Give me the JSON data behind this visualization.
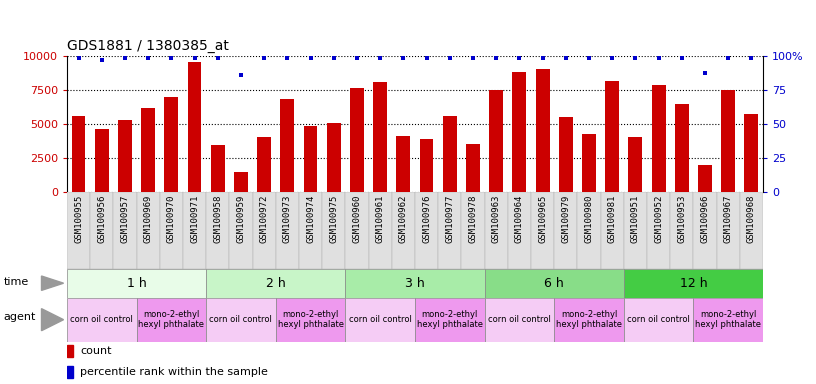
{
  "title": "GDS1881 / 1380385_at",
  "samples": [
    "GSM100955",
    "GSM100956",
    "GSM100957",
    "GSM100969",
    "GSM100970",
    "GSM100971",
    "GSM100958",
    "GSM100959",
    "GSM100972",
    "GSM100973",
    "GSM100974",
    "GSM100975",
    "GSM100960",
    "GSM100961",
    "GSM100962",
    "GSM100976",
    "GSM100977",
    "GSM100978",
    "GSM100963",
    "GSM100964",
    "GSM100965",
    "GSM100979",
    "GSM100980",
    "GSM100981",
    "GSM100951",
    "GSM100952",
    "GSM100953",
    "GSM100966",
    "GSM100967",
    "GSM100968"
  ],
  "counts": [
    5600,
    4650,
    5250,
    6150,
    7000,
    9500,
    3450,
    1450,
    4000,
    6850,
    4850,
    5050,
    7600,
    8050,
    4100,
    3900,
    5600,
    3550,
    7450,
    8800,
    9000,
    5500,
    4250,
    8150,
    4050,
    7850,
    6450,
    2000,
    7500,
    5700
  ],
  "percentile_ranks": [
    98,
    97,
    98,
    98,
    98,
    98,
    98,
    86,
    98,
    98,
    98,
    98,
    98,
    98,
    98,
    98,
    98,
    98,
    98,
    98,
    98,
    98,
    98,
    98,
    98,
    98,
    98,
    87,
    98,
    98
  ],
  "time_groups": [
    {
      "label": "1 h",
      "start": 0,
      "end": 6,
      "color": "#e8fce8"
    },
    {
      "label": "2 h",
      "start": 6,
      "end": 12,
      "color": "#c8f5c8"
    },
    {
      "label": "3 h",
      "start": 12,
      "end": 18,
      "color": "#a8eca8"
    },
    {
      "label": "6 h",
      "start": 18,
      "end": 24,
      "color": "#88dd88"
    },
    {
      "label": "12 h",
      "start": 24,
      "end": 30,
      "color": "#44cc44"
    }
  ],
  "agent_groups": [
    {
      "label": "corn oil control",
      "start": 0,
      "end": 3,
      "color": "#f5ccf5"
    },
    {
      "label": "mono-2-ethyl\nhexyl phthalate",
      "start": 3,
      "end": 6,
      "color": "#ee99ee"
    },
    {
      "label": "corn oil control",
      "start": 6,
      "end": 9,
      "color": "#f5ccf5"
    },
    {
      "label": "mono-2-ethyl\nhexyl phthalate",
      "start": 9,
      "end": 12,
      "color": "#ee99ee"
    },
    {
      "label": "corn oil control",
      "start": 12,
      "end": 15,
      "color": "#f5ccf5"
    },
    {
      "label": "mono-2-ethyl\nhexyl phthalate",
      "start": 15,
      "end": 18,
      "color": "#ee99ee"
    },
    {
      "label": "corn oil control",
      "start": 18,
      "end": 21,
      "color": "#f5ccf5"
    },
    {
      "label": "mono-2-ethyl\nhexyl phthalate",
      "start": 21,
      "end": 24,
      "color": "#ee99ee"
    },
    {
      "label": "corn oil control",
      "start": 24,
      "end": 27,
      "color": "#f5ccf5"
    },
    {
      "label": "mono-2-ethyl\nhexyl phthalate",
      "start": 27,
      "end": 30,
      "color": "#ee99ee"
    }
  ],
  "bar_color": "#cc0000",
  "dot_color": "#0000cc",
  "ylim_left": [
    0,
    10000
  ],
  "yticks_left": [
    0,
    2500,
    5000,
    7500,
    10000
  ],
  "ytick_labels_left": [
    "0",
    "2500",
    "5000",
    "7500",
    "10000"
  ],
  "ylim_right": [
    0,
    100
  ],
  "yticks_right": [
    0,
    25,
    50,
    75,
    100
  ],
  "ytick_labels_right": [
    "0",
    "25",
    "50",
    "75",
    "100%"
  ],
  "left_axis_color": "#cc0000",
  "right_axis_color": "#0000cc",
  "time_label": "time",
  "agent_label": "agent",
  "legend_count_label": "count",
  "legend_percentile_label": "percentile rank within the sample",
  "title_fontsize": 10,
  "tick_fontsize": 6.5,
  "axis_label_fontsize": 8,
  "sample_bg_color": "#e0e0e0"
}
